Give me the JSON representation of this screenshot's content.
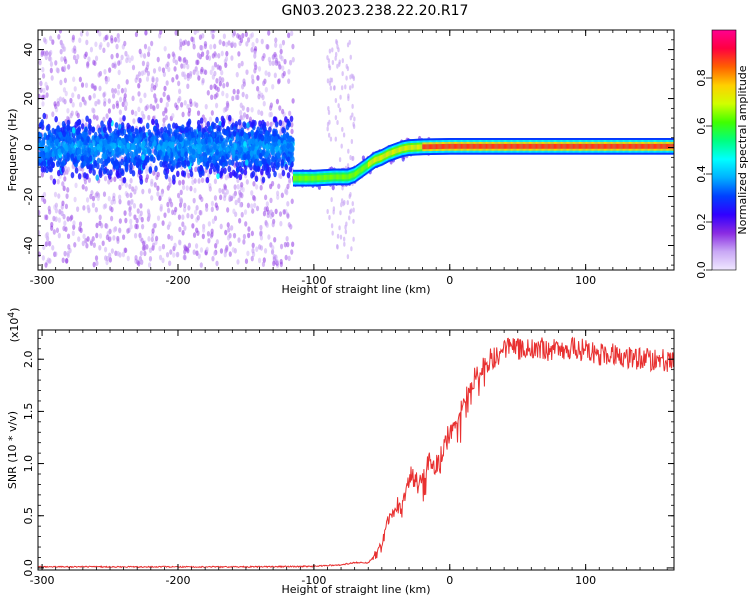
{
  "figure": {
    "title": "GN03.2023.238.22.20.R17"
  },
  "chart_data": [
    {
      "type": "heatmap",
      "xlabel": "Height of straight line (km)",
      "ylabel": "Frequency (Hz)",
      "xlim": [
        -303,
        165
      ],
      "ylim": [
        -50,
        48
      ],
      "xticks": [
        -300,
        -200,
        -100,
        0,
        100
      ],
      "xtick_labels": [
        "-300",
        "-200",
        "-100",
        "0",
        "100"
      ],
      "yticks": [
        -40,
        -20,
        0,
        20,
        40
      ],
      "ytick_labels": [
        "-40",
        "-20",
        "0",
        "20",
        "40"
      ],
      "colorbar": {
        "label": "Normalized spectral amplitude",
        "range": [
          0,
          1
        ],
        "ticks": [
          0.0,
          0.2,
          0.4,
          0.6,
          0.8
        ],
        "tick_labels": [
          "0.0",
          "0.2",
          "0.4",
          "0.6",
          "0.8"
        ],
        "colormap": [
          "#f0e8ff",
          "#c9a8f5",
          "#8a2be2",
          "#3000ff",
          "#0040ff",
          "#00b0ff",
          "#00ffff",
          "#00ff80",
          "#40ff00",
          "#d0ff00",
          "#ffd000",
          "#ff6000",
          "#ff0040",
          "#ff0090"
        ]
      },
      "ridge": {
        "x": [
          -115,
          -100,
          -85,
          -75,
          -70,
          -65,
          -60,
          -55,
          -50,
          -45,
          -40,
          -35,
          -30,
          -20,
          -10,
          0,
          50,
          100,
          165
        ],
        "y": [
          -12.5,
          -12.5,
          -12,
          -12,
          -11,
          -9,
          -7,
          -5,
          -4,
          -2.5,
          -1.5,
          -0.5,
          0,
          0.3,
          0.4,
          0.5,
          0.5,
          0.5,
          0.5
        ]
      },
      "noise_band": {
        "x_range": [
          -303,
          -115
        ],
        "center": 0,
        "core_halfwidth": 12,
        "faint_halfwidth": 48
      },
      "grid": false
    },
    {
      "type": "line",
      "xlabel": "Height of straight line (km)",
      "ylabel": "SNR (10 * v/v)",
      "y_multiplier": "(x10",
      "y_multiplier_exp": "4",
      "y_multiplier_close": ")",
      "xlim": [
        -303,
        165
      ],
      "ylim": [
        -0.02,
        2.28
      ],
      "xticks": [
        -300,
        -200,
        -100,
        0,
        100
      ],
      "xtick_labels": [
        "-300",
        "-200",
        "-100",
        "0",
        "100"
      ],
      "yticks": [
        0.0,
        0.5,
        1.0,
        1.5,
        2.0
      ],
      "ytick_labels": [
        "0.0",
        "0.5",
        "1.0",
        "1.5",
        "2.0"
      ],
      "series": [
        {
          "color": "#e83030",
          "x": [
            -303,
            -250,
            -200,
            -150,
            -100,
            -80,
            -70,
            -60,
            -55,
            -50,
            -45,
            -40,
            -35,
            -30,
            -25,
            -20,
            -15,
            -10,
            -5,
            0,
            5,
            10,
            15,
            20,
            25,
            30,
            35,
            40,
            50,
            60,
            70,
            80,
            90,
            100,
            110,
            120,
            130,
            140,
            150,
            165
          ],
          "y": [
            0.01,
            0.01,
            0.01,
            0.01,
            0.015,
            0.03,
            0.05,
            0.05,
            0.12,
            0.2,
            0.5,
            0.6,
            0.6,
            0.9,
            0.85,
            0.9,
            1.05,
            1.0,
            1.15,
            1.3,
            1.4,
            1.55,
            1.75,
            1.85,
            1.95,
            2.0,
            2.05,
            2.1,
            2.1,
            2.1,
            2.1,
            2.08,
            2.1,
            2.08,
            2.05,
            2.05,
            2.03,
            2.0,
            2.0,
            1.98
          ],
          "noise_amplitude": 0.07
        }
      ],
      "grid": false
    }
  ]
}
